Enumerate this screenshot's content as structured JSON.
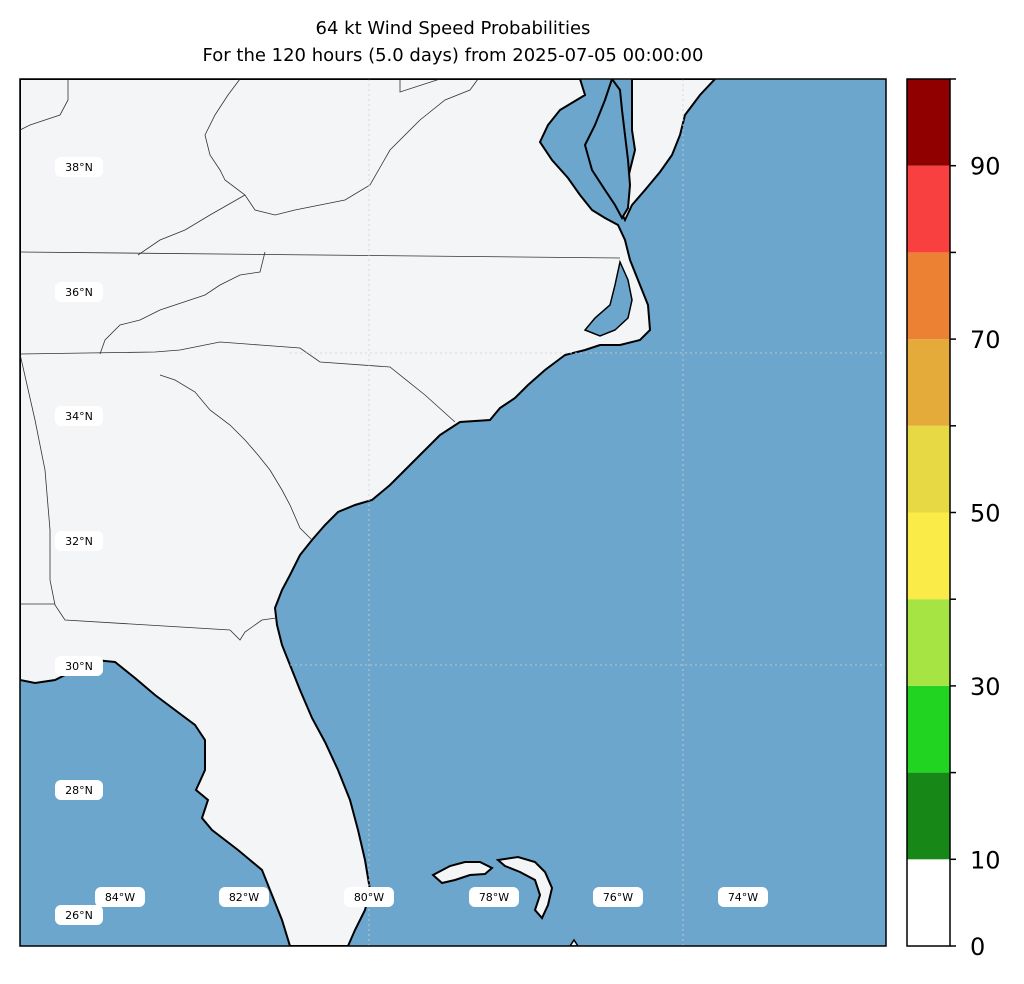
{
  "title": {
    "line1": "64 kt Wind Speed Probabilities",
    "line2": "For the 120 hours (5.0 days) from 2025-07-05 00:00:00"
  },
  "colors": {
    "ocean": "#6ca6cd",
    "land": "#f4f5f7",
    "coastline": "#000000",
    "state_border": "#333333",
    "gridline": "#c8c8c8"
  },
  "map": {
    "lat_labels": [
      "38°N",
      "36°N",
      "34°N",
      "32°N",
      "30°N",
      "28°N",
      "26°N"
    ],
    "lon_labels": [
      "84°W",
      "82°W",
      "80°W",
      "78°W",
      "76°W",
      "74°W"
    ]
  },
  "colorbar": {
    "levels": [
      0,
      10,
      20,
      30,
      40,
      50,
      60,
      70,
      80,
      90,
      100
    ],
    "colors": [
      "#ffffff",
      "#178717",
      "#22d422",
      "#a6e443",
      "#fbeb48",
      "#e7d944",
      "#e4aa3a",
      "#ec8033",
      "#f94040",
      "#900000",
      "#7f25da"
    ],
    "tick_labels": [
      "0",
      "10",
      "30",
      "50",
      "70",
      "90"
    ]
  }
}
